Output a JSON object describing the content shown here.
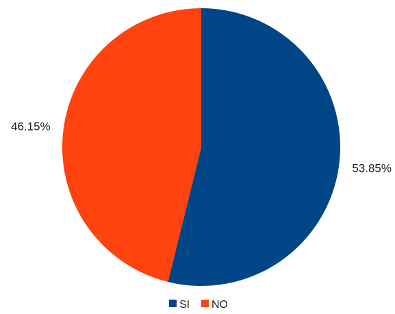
{
  "chart_data": {
    "type": "pie",
    "slices": [
      {
        "label": "SI",
        "value": 53.85,
        "value_label": "53.85%",
        "color": "#004586"
      },
      {
        "label": "NO",
        "value": 46.15,
        "value_label": "46.15%",
        "color": "#ff420e"
      }
    ],
    "legend": {
      "position": "bottom",
      "items": [
        "SI",
        "NO"
      ]
    },
    "start_angle": "top",
    "direction": "clockwise"
  }
}
